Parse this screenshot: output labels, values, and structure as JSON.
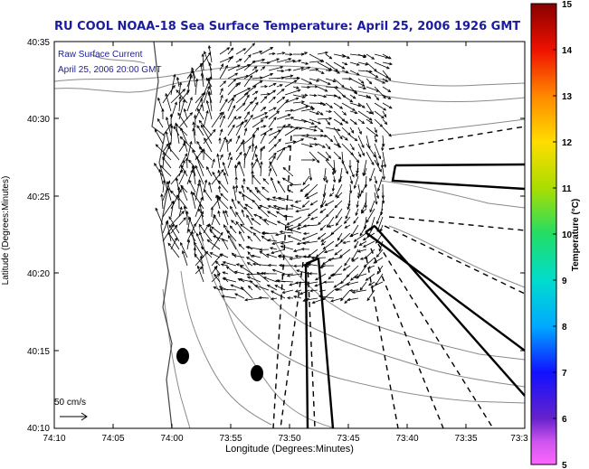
{
  "title": "RU COOL  NOAA-18  Sea Surface Temperature:  April 25, 2006 1926 GMT",
  "annotation": {
    "line1": "Raw Surface Current",
    "line2": "April 25, 2006 20:00 GMT"
  },
  "scale_label": "50 cm/s",
  "axes": {
    "xlabel": "Longitude (Degrees:Minutes)",
    "ylabel": "Latitude (Degrees:Minutes)",
    "xticks": [
      "74:10",
      "74:05",
      "74:00",
      "73:55",
      "73:50",
      "73:45",
      "73:40",
      "73:35",
      "73:3"
    ],
    "yticks": [
      "40:35",
      "40:30",
      "40:25",
      "40:20",
      "40:15",
      "40:10"
    ]
  },
  "colorbar": {
    "label": "Temperature (°C)",
    "ticks": [
      "15",
      "14",
      "13",
      "12",
      "11",
      "10",
      "9",
      "8",
      "7",
      "6",
      "5"
    ]
  },
  "colors": {
    "title": "#1c1ca0",
    "annotation": "#1c1ca0",
    "land": "#ffffff",
    "contour": "#8a8a8a"
  }
}
